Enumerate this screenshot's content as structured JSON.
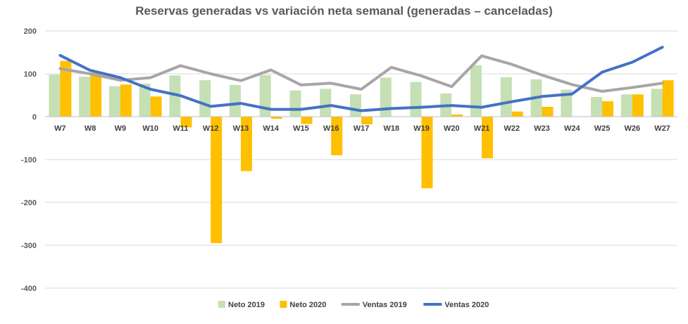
{
  "chart_data": {
    "type": "bar",
    "title": "Reservas generadas vs variación neta semanal (generadas – canceladas)",
    "xlabel": "",
    "ylabel": "",
    "ylim": [
      -400,
      200
    ],
    "yticks": [
      200,
      100,
      0,
      -100,
      -200,
      -300,
      -400
    ],
    "grid": true,
    "legend_position": "bottom",
    "categories": [
      "W7",
      "W8",
      "W9",
      "W10",
      "W11",
      "W12",
      "W13",
      "W14",
      "W15",
      "W16",
      "W17",
      "W18",
      "W19",
      "W20",
      "W21",
      "W22",
      "W23",
      "W24",
      "W25",
      "W26",
      "W27"
    ],
    "series": [
      {
        "name": "Neto 2019",
        "kind": "bar",
        "color": "#C5E0B4",
        "values": [
          98,
          93,
          71,
          77,
          96,
          85,
          74,
          97,
          61,
          65,
          52,
          91,
          81,
          54,
          120,
          92,
          87,
          63,
          46,
          52,
          65
        ]
      },
      {
        "name": "Neto 2020",
        "kind": "bar",
        "color": "#FFC000",
        "values": [
          130,
          103,
          75,
          47,
          -25,
          -295,
          -127,
          -5,
          -17,
          -90,
          -18,
          0,
          -167,
          5,
          -97,
          12,
          23,
          0,
          36,
          52,
          85
        ]
      },
      {
        "name": "Ventas 2019",
        "kind": "line",
        "color": "#A6A6A6",
        "values": [
          112,
          100,
          85,
          91,
          119,
          100,
          84,
          109,
          74,
          78,
          64,
          115,
          95,
          70,
          142,
          122,
          97,
          75,
          59,
          68,
          78
        ]
      },
      {
        "name": "Ventas 2020",
        "kind": "line",
        "color": "#4472C4",
        "values": [
          143,
          108,
          91,
          64,
          49,
          24,
          31,
          17,
          17,
          26,
          14,
          19,
          22,
          26,
          22,
          35,
          47,
          53,
          104,
          127,
          162
        ]
      }
    ]
  }
}
